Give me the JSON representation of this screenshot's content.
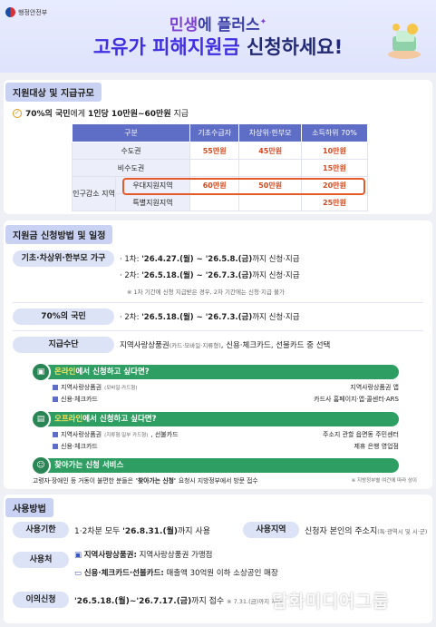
{
  "header": {
    "ministry": "행정안전부",
    "title_part1_hl": "민생",
    "title_part1_rest": "에 플러스",
    "title_part2_hl": "고유가 피해지원금",
    "title_part2_rest": " 신청하세요!"
  },
  "eligibility": {
    "section_title": "지원대상 및 지급규모",
    "lead_pre": "70%의 국민",
    "lead_mid": "에게 ",
    "lead_amount": "1인당 10만원~60만원",
    "lead_post": " 지급",
    "table": {
      "headers": [
        "구분",
        "기초수급자",
        "차상위·한부모",
        "소득하위 70%"
      ],
      "rows": [
        {
          "label": "수도권",
          "v1": "55만원",
          "v2": "45만원",
          "v3": "10만원"
        },
        {
          "label": "비수도권",
          "v1": "",
          "v2": "",
          "v3": "15만원"
        },
        {
          "group": "인구감소 지역",
          "label": "우대지원지역",
          "v1": "60만원",
          "v2": "50만원",
          "v3": "20만원"
        },
        {
          "label": "특별지원지역",
          "v1": "",
          "v2": "",
          "v3": "25만원"
        }
      ]
    }
  },
  "schedule": {
    "section_title": "지원금 신청방법 및 일정",
    "group1_label": "기초·차상위·한부모 가구",
    "round1_pre": "· 1차: ",
    "round1_dates": "'26.4.27.(월) ~ '26.5.8.(금)",
    "round1_post": "까지 신청·지급",
    "round2_pre": "· 2차: ",
    "round2_dates": "'26.5.18.(월) ~ '26.7.3.(금)",
    "round2_post": "까지 신청·지급",
    "round_note": "※ 1차 기간에 신청 지급받은 경우, 2차 기간에는 신청·지급 불가",
    "group2_label": "70%의 국민",
    "g2_pre": "· 2차: ",
    "g2_dates": "'26.5.18.(월) ~ '26.7.3.(금)",
    "g2_post": "까지 신청·지급",
    "means_label": "지급수단",
    "means_a": "지역사랑상품권",
    "means_small": "(카드·모바일·지류형)",
    "means_b": ", 신용·체크카드, 선불카드 중 선택",
    "online": {
      "title_hl": "온라인",
      "title_rest": "에서 신청하고 싶다면?",
      "l1": "지역사랑상품권",
      "l1_small": "(모바일·카드형)",
      "r1": "지역사랑상품권 앱",
      "l2": "신용·체크카드",
      "r2": "카드사 홈페이지·앱·콜센터·ARS"
    },
    "offline": {
      "title_hl": "오프라인",
      "title_rest": "에서 신청하고 싶다면?",
      "l1": "지역사랑상품권",
      "l1_small": "(지류형·일부 카드형)",
      "l1_tail": ", 선불카드",
      "r1": "주소지 관할 읍면동 주민센터",
      "l2": "신용·체크카드",
      "r2": "제휴 은행 영업점"
    },
    "visit": {
      "title": "찾아가는 신청 서비스",
      "text_pre": "고령자·장애인 등 거동이 불편한 분들은 ",
      "text_bold": "'찾아가는 신청'",
      "text_post": " 요청시 지방정부에서 방문 접수",
      "note": "※ 지방정부별 여건에 따라 상이"
    }
  },
  "usage": {
    "section_title": "사용방법",
    "deadline_label": "사용기한",
    "deadline_pre": "1·2차분 모두 ",
    "deadline_date": "'26.8.31.(월)",
    "deadline_post": "까지 사용",
    "area_label": "사용지역",
    "area_text": "신청자 본인의 주소지",
    "area_small": "(특·광역시 및 시·군)",
    "place_label": "사용처",
    "place1_bold": "지역사랑상품권:",
    "place1_rest": " 지역사랑상품권 가맹점",
    "place2_bold": "신용·체크카드·선불카드:",
    "place2_rest": " 매출액 30억원 이하 소상공인 매장",
    "appeal_label": "이의신청",
    "appeal_dates": "'26.5.18.(월)~'26.7.17.(금)",
    "appeal_post": "까지 접수",
    "appeal_small": "※ 7.31.(금)까지 처리",
    "watermark": "담화미디어그룹"
  }
}
